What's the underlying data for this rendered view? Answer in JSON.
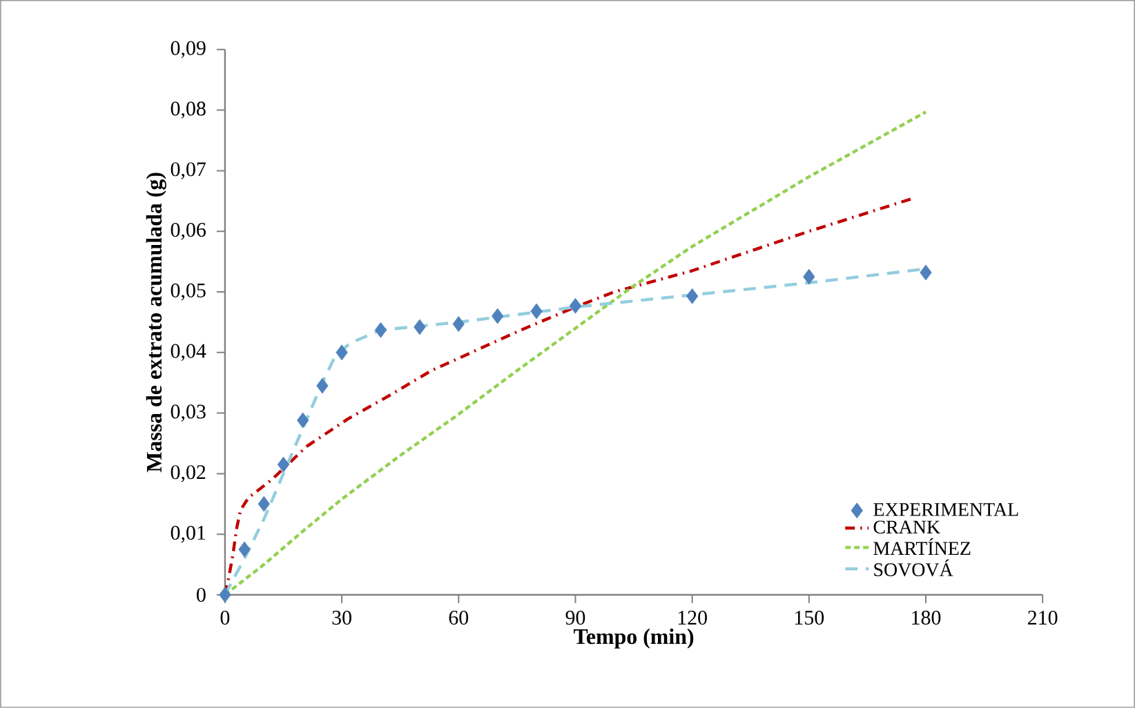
{
  "chart_data": {
    "type": "line",
    "xlabel": "Tempo (min)",
    "ylabel": "Massa de extrato acumulada (g)",
    "xlim": [
      0,
      210
    ],
    "xticks": [
      0,
      30,
      60,
      90,
      120,
      150,
      180,
      210
    ],
    "ylim": [
      0,
      0.09
    ],
    "yticks": [
      {
        "value": 0,
        "label": "0"
      },
      {
        "value": 0.01,
        "label": "0,01"
      },
      {
        "value": 0.02,
        "label": "0,02"
      },
      {
        "value": 0.03,
        "label": "0,03"
      },
      {
        "value": 0.04,
        "label": "0,04"
      },
      {
        "value": 0.05,
        "label": "0,05"
      },
      {
        "value": 0.06,
        "label": "0,06"
      },
      {
        "value": 0.07,
        "label": "0,07"
      },
      {
        "value": 0.08,
        "label": "0,08"
      },
      {
        "value": 0.09,
        "label": "0,09"
      }
    ],
    "grid": false,
    "legend": "bottom right",
    "series": [
      {
        "name": "EXPERIMENTAL",
        "type": "scatter",
        "marker": "diamond",
        "color": "#4f81bd",
        "x": [
          0,
          5,
          10,
          15,
          20,
          25,
          30,
          40,
          50,
          60,
          70,
          80,
          90,
          120,
          150,
          180
        ],
        "values": [
          0,
          0.0075,
          0.015,
          0.0215,
          0.0288,
          0.0345,
          0.04,
          0.0437,
          0.0442,
          0.0447,
          0.046,
          0.0468,
          0.0477,
          0.0493,
          0.0525,
          0.0532
        ]
      },
      {
        "name": "CRANK",
        "line_style": "dashdot",
        "marker": "none",
        "color": "#c00000",
        "x": [
          0,
          1,
          2,
          3,
          4,
          6,
          12,
          21,
          31.5,
          42.5,
          53,
          65,
          76,
          90,
          100,
          120,
          150,
          177
        ],
        "values": [
          0,
          0.003,
          0.0065,
          0.011,
          0.014,
          0.016,
          0.019,
          0.0245,
          0.029,
          0.033,
          0.037,
          0.0405,
          0.0437,
          0.0475,
          0.05,
          0.0535,
          0.06,
          0.0655
        ]
      },
      {
        "name": "MARTÍNEZ",
        "line_style": "dotted",
        "marker": "none",
        "color": "#92d050",
        "x": [
          0,
          10,
          20,
          30,
          45,
          60,
          75,
          90,
          105,
          120,
          150,
          180
        ],
        "values": [
          0,
          0.005,
          0.0105,
          0.0158,
          0.023,
          0.0298,
          0.037,
          0.044,
          0.051,
          0.0575,
          0.069,
          0.0797
        ]
      },
      {
        "name": "SOVOVÁ",
        "line_style": "dashed",
        "marker": "none",
        "color": "#93cddd",
        "x": [
          0,
          5,
          10,
          15,
          20,
          25,
          28,
          32,
          40,
          60,
          90,
          120,
          150,
          180
        ],
        "values": [
          0,
          0.006,
          0.0125,
          0.02,
          0.0275,
          0.035,
          0.039,
          0.0415,
          0.0437,
          0.045,
          0.0475,
          0.0495,
          0.0515,
          0.0538
        ]
      }
    ]
  }
}
